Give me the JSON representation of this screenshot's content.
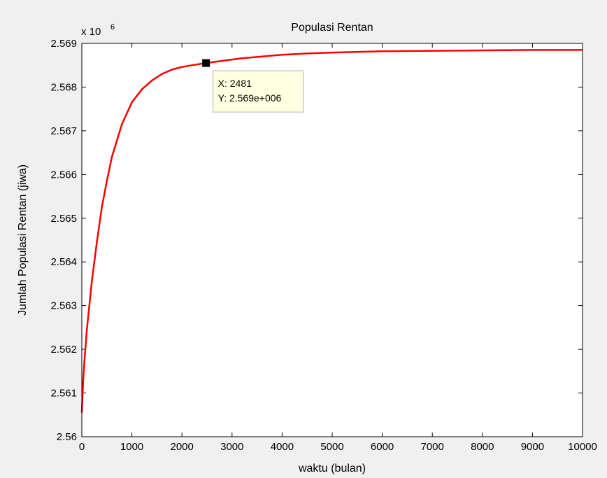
{
  "chart_data": {
    "type": "line",
    "title": "Populasi Rentan",
    "xlabel": "waktu (bulan)",
    "ylabel": "Jumlah Populasi Rentan (jiwa)",
    "y_exponent_label": "x 10",
    "y_exponent_power": "6",
    "xlim": [
      0,
      10000
    ],
    "ylim": [
      2.56,
      2.569
    ],
    "x_ticks": [
      0,
      1000,
      2000,
      3000,
      4000,
      5000,
      6000,
      7000,
      8000,
      9000,
      10000
    ],
    "x_tick_labels": [
      "0",
      "1000",
      "2000",
      "3000",
      "4000",
      "5000",
      "6000",
      "7000",
      "8000",
      "9000",
      "10000"
    ],
    "y_ticks": [
      2.56,
      2.561,
      2.562,
      2.563,
      2.564,
      2.565,
      2.566,
      2.567,
      2.568,
      2.569
    ],
    "y_tick_labels": [
      "2.56",
      "2.561",
      "2.562",
      "2.563",
      "2.564",
      "2.565",
      "2.566",
      "2.567",
      "2.568",
      "2.569"
    ],
    "grid": false,
    "series": [
      {
        "color": "#ff0000",
        "x": [
          0,
          25,
          50,
          100,
          200,
          300,
          400,
          500,
          600,
          800,
          1000,
          1200,
          1400,
          1600,
          1800,
          2000,
          2200,
          2481,
          2800,
          3200,
          3600,
          4000,
          4500,
          5000,
          6000,
          7000,
          8000,
          9000,
          10000
        ],
        "y": [
          2.56055,
          2.56125,
          2.5617,
          2.56245,
          2.56355,
          2.56445,
          2.56525,
          2.56585,
          2.5664,
          2.56715,
          2.56765,
          2.56795,
          2.56815,
          2.5683,
          2.5684,
          2.56846,
          2.5685,
          2.56855,
          2.5686,
          2.56866,
          2.5687,
          2.56874,
          2.56877,
          2.56879,
          2.56882,
          2.56883,
          2.56884,
          2.56885,
          2.56885
        ]
      }
    ],
    "datatip": {
      "x_value": 2481,
      "y_value": 2.56855,
      "x_text": "X: 2481",
      "y_text": "Y: 2.569e+006"
    }
  }
}
